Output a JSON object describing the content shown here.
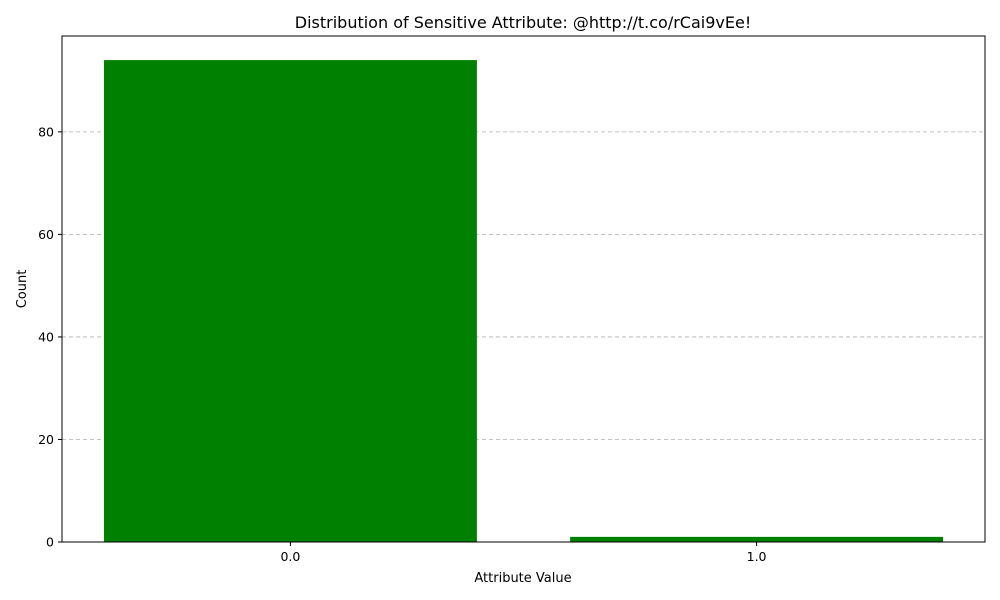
{
  "chart_data": {
    "type": "bar",
    "title": "Distribution of Sensitive Attribute: @http://t.co/rCai9vEe!",
    "xlabel": "Attribute Value",
    "ylabel": "Count",
    "categories": [
      "0.0",
      "1.0"
    ],
    "values": [
      94,
      1
    ],
    "ylim": [
      0,
      98.7
    ],
    "yticks": [
      0,
      20,
      40,
      60,
      80
    ],
    "grid": "y-dashed",
    "bar_color": "#008000"
  }
}
